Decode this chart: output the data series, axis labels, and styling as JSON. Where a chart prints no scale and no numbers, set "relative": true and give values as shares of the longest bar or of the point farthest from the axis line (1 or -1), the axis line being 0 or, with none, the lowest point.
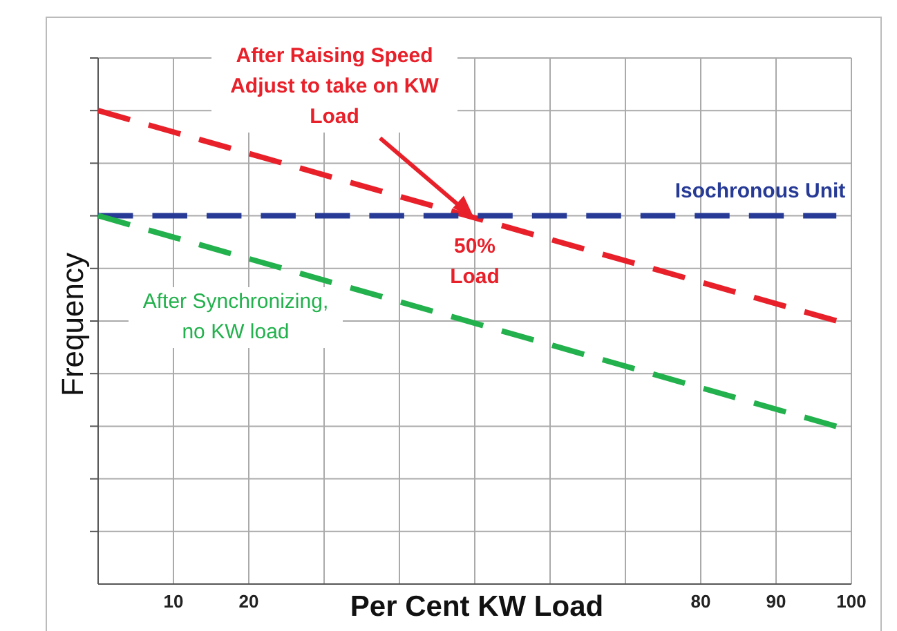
{
  "chart_data": {
    "type": "line",
    "relative": true,
    "xlabel": "Per Cent KW Load",
    "ylabel": "Frequency",
    "xlim": [
      0,
      100
    ],
    "xticks": [
      10,
      20,
      {
        "value": 30,
        "label": null
      },
      {
        "value": 40,
        "label": null
      },
      {
        "value": 50,
        "label": null
      },
      {
        "value": 60,
        "label": null
      },
      {
        "value": 70,
        "label": null
      },
      80,
      90,
      100
    ],
    "grid": true,
    "marker": "none",
    "line_style": "dashed",
    "x": [
      0,
      98
    ],
    "series": [
      {
        "name": "After Raising Speed Adjust to take on KW Load",
        "color": "#e8202a",
        "values": [
          1,
          0.556
        ]
      },
      {
        "name": "Isochronous Unit",
        "color": "#263a96",
        "values": [
          0.778,
          0.778
        ]
      },
      {
        "name": "After Synchronizing, no KW load",
        "color": "#22b14c",
        "values": [
          0.778,
          0.333
        ]
      }
    ],
    "annotations": [
      {
        "text": "50% Load",
        "x": 50,
        "y": 0.778
      }
    ]
  }
}
